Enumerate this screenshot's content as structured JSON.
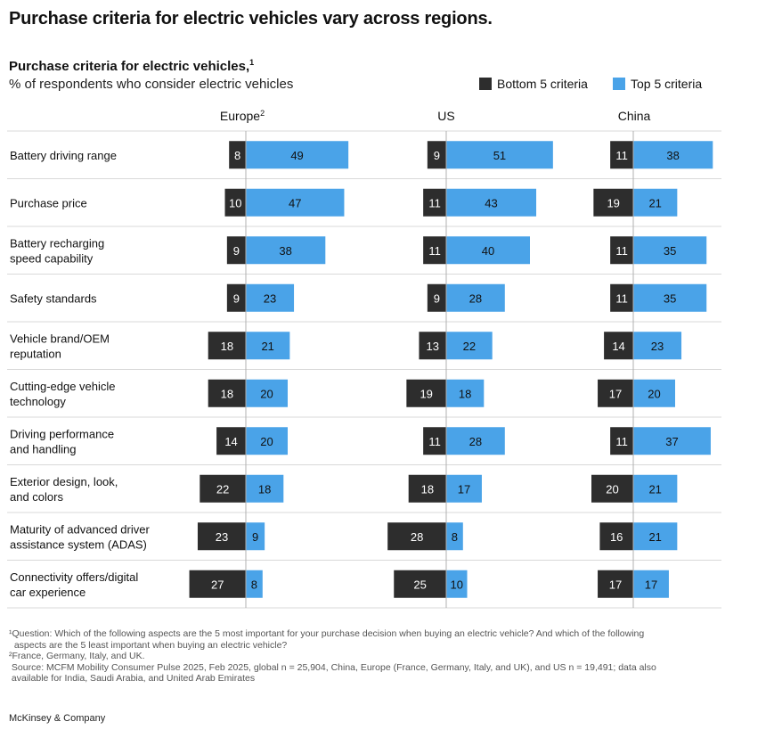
{
  "headline": "Purchase criteria for electric vehicles vary across regions.",
  "legend": {
    "bottom_label": "Bottom 5 criteria",
    "top_label": "Top 5 criteria"
  },
  "colors": {
    "bottom": "#2d2d2d",
    "top": "#4aa3e8",
    "grid": "#d9d9d9",
    "axis": "#b0b0b0"
  },
  "chart_data": {
    "type": "bar",
    "title": "Purchase criteria for electric vehicles,",
    "title_footnote": "1",
    "subtitle": "% of respondents who consider electric vehicles",
    "categories": [
      [
        "Battery driving range"
      ],
      [
        "Purchase price"
      ],
      [
        "Battery recharging",
        "speed capability"
      ],
      [
        "Safety standards"
      ],
      [
        "Vehicle brand/OEM",
        "reputation"
      ],
      [
        "Cutting-edge vehicle",
        "technology"
      ],
      [
        "Driving performance",
        "and handling"
      ],
      [
        "Exterior design, look,",
        "and colors"
      ],
      [
        "Maturity of advanced driver",
        "assistance system (ADAS)"
      ],
      [
        "Connectivity offers/digital",
        "car experience"
      ]
    ],
    "panels": [
      {
        "name": "Europe",
        "footnote": "2",
        "series": [
          {
            "name": "Bottom 5 criteria",
            "values": [
              8,
              10,
              9,
              9,
              18,
              18,
              14,
              22,
              23,
              27
            ]
          },
          {
            "name": "Top 5 criteria",
            "values": [
              49,
              47,
              38,
              23,
              21,
              20,
              20,
              18,
              9,
              8
            ]
          }
        ]
      },
      {
        "name": "US",
        "footnote": "",
        "series": [
          {
            "name": "Bottom 5 criteria",
            "values": [
              9,
              11,
              11,
              9,
              13,
              19,
              11,
              18,
              28,
              25
            ]
          },
          {
            "name": "Top 5 criteria",
            "values": [
              51,
              43,
              40,
              28,
              22,
              18,
              28,
              17,
              8,
              10
            ]
          }
        ]
      },
      {
        "name": "China",
        "footnote": "",
        "series": [
          {
            "name": "Bottom 5 criteria",
            "values": [
              11,
              19,
              11,
              11,
              14,
              17,
              11,
              20,
              16,
              17
            ]
          },
          {
            "name": "Top 5 criteria",
            "values": [
              38,
              21,
              35,
              35,
              23,
              20,
              37,
              21,
              21,
              17
            ]
          }
        ]
      }
    ]
  },
  "footnotes": [
    "¹Question: Which of the following aspects are the 5 most important for your purchase decision when buying an electric vehicle? And which of the following\n  aspects are the 5 least important when buying an electric vehicle?",
    "²France, Germany, Italy, and UK.",
    " Source: MCFM Mobility Consumer Pulse 2025, Feb 2025, global n = 25,904, China, Europe (France, Germany, Italy, and UK), and US n = 19,491; data also\n available for India, Saudi Arabia, and United Arab Emirates"
  ],
  "brand": "McKinsey & Company"
}
